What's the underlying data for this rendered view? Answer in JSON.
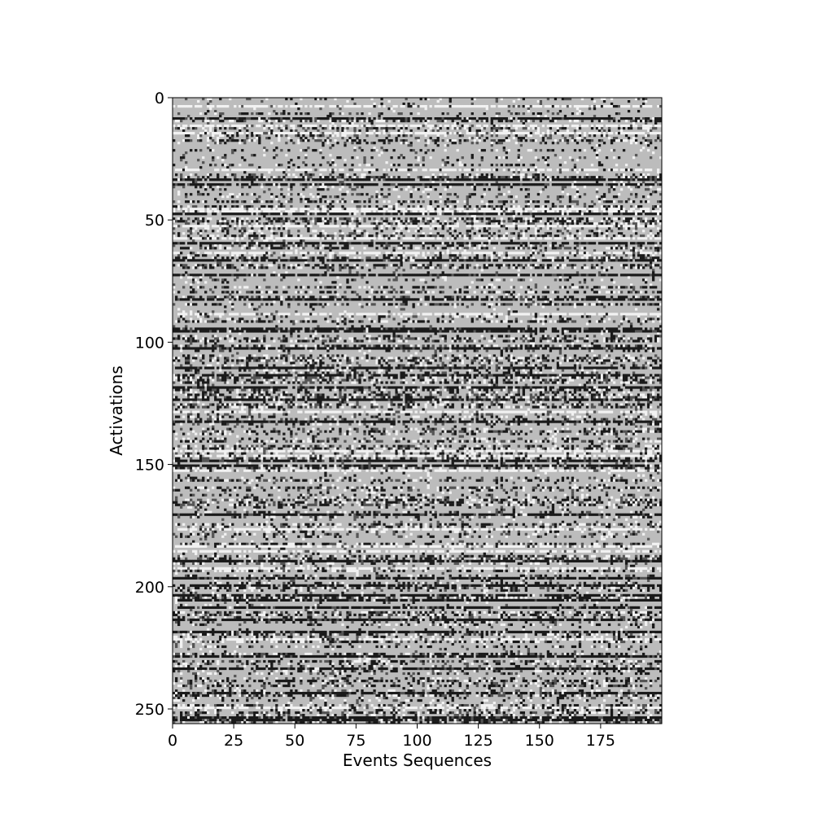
{
  "chart_data": {
    "type": "heatmap",
    "title": "",
    "xlabel": "Events Sequences",
    "ylabel": "Activations",
    "x_range": [
      0,
      200
    ],
    "y_range": [
      0,
      256
    ],
    "y_inverted": true,
    "x_ticks": [
      0,
      25,
      50,
      75,
      100,
      125,
      150,
      175
    ],
    "y_ticks": [
      0,
      50,
      100,
      150,
      200,
      250
    ],
    "colormap": "gray",
    "grid": false,
    "legend": "none",
    "colors": {
      "base_gray": "#bcbcbc",
      "dark": "#1a1a1a",
      "mid_dark": "#555555",
      "light": "#f2f2f2"
    },
    "strong_dark_rows": [
      8,
      33,
      35,
      47,
      59,
      66,
      72,
      82,
      94,
      95,
      102,
      110,
      113,
      118,
      123,
      132,
      148,
      150,
      170,
      189,
      196,
      199,
      203,
      205,
      208,
      213,
      218,
      228,
      233,
      243,
      253,
      254
    ],
    "strong_light_rows": [
      3,
      11,
      14,
      29,
      45,
      46,
      52,
      57,
      63,
      88,
      128,
      144,
      146,
      152,
      176,
      183,
      185,
      192,
      221,
      249
    ]
  }
}
